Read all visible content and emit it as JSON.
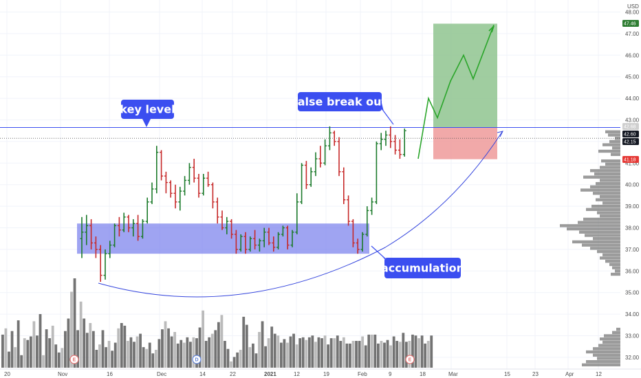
{
  "chart_data": {
    "type": "bar",
    "subtype": "ohlc",
    "currency_label": "USD",
    "y_axis": {
      "range": [
        31.6,
        48.4
      ],
      "ticks": [
        "48.00",
        "47.00",
        "46.00",
        "45.00",
        "44.00",
        "43.00",
        "42.00",
        "41.00",
        "40.00",
        "39.00",
        "38.00",
        "37.00",
        "36.00",
        "35.00",
        "34.00",
        "33.00",
        "32.00"
      ],
      "tick_values": [
        48,
        47,
        46,
        45,
        44,
        43,
        42,
        41,
        40,
        39,
        38,
        37,
        36,
        35,
        34,
        33,
        32
      ]
    },
    "x_axis": {
      "labels": [
        "20",
        "Nov",
        "16",
        "Dec",
        "14",
        "22",
        "2021",
        "12",
        "19",
        "Feb",
        "9",
        "18",
        "Mar",
        "15",
        "23",
        "Apr",
        "12"
      ]
    },
    "price_badges": [
      {
        "label": "47.46",
        "value": 47.46,
        "color": "#2e7d32"
      },
      {
        "label": "42.68",
        "value": 42.68,
        "color": "#cfcfcf"
      },
      {
        "label": "42.60",
        "value": 42.6,
        "color": "#131722"
      },
      {
        "label": "42.15",
        "value": 42.15,
        "color": "#131722"
      },
      {
        "label": "41.18",
        "value": 41.18,
        "color": "#e53935"
      }
    ],
    "key_level": 42.65,
    "dotted_level": 42.15,
    "accumulation_zone": [
      36.8,
      38.2
    ],
    "target_zone": [
      42.65,
      47.46
    ],
    "stop_zone": [
      41.18,
      42.65
    ],
    "projected_path": [
      41.2,
      44.0,
      43.1,
      44.8,
      46.0,
      44.9,
      47.4
    ],
    "bars": [
      [
        37.5,
        38.5,
        36.6,
        37.8
      ],
      [
        37.8,
        38.6,
        37.2,
        38.1
      ],
      [
        38.1,
        38.4,
        37.0,
        37.3
      ],
      [
        37.3,
        37.6,
        36.6,
        37.0
      ],
      [
        37.0,
        37.2,
        35.5,
        35.8
      ],
      [
        35.8,
        37.0,
        35.6,
        36.8
      ],
      [
        36.8,
        37.4,
        36.6,
        37.2
      ],
      [
        37.2,
        38.2,
        37.1,
        38.1
      ],
      [
        38.1,
        38.5,
        37.6,
        37.9
      ],
      [
        37.9,
        38.7,
        37.8,
        38.5
      ],
      [
        38.5,
        38.6,
        37.8,
        38.0
      ],
      [
        38.0,
        38.4,
        37.6,
        38.2
      ],
      [
        38.2,
        38.6,
        37.4,
        37.6
      ],
      [
        37.6,
        38.4,
        37.5,
        38.3
      ],
      [
        38.3,
        39.4,
        38.2,
        39.2
      ],
      [
        39.2,
        40.1,
        39.1,
        39.8
      ],
      [
        39.8,
        41.8,
        39.6,
        41.5
      ],
      [
        41.5,
        41.6,
        40.2,
        40.4
      ],
      [
        40.4,
        40.6,
        39.6,
        40.1
      ],
      [
        40.1,
        40.2,
        39.4,
        39.6
      ],
      [
        39.6,
        40.0,
        38.9,
        39.2
      ],
      [
        39.2,
        39.9,
        38.8,
        39.7
      ],
      [
        39.7,
        40.4,
        39.5,
        40.2
      ],
      [
        40.2,
        41.0,
        40.0,
        40.8
      ],
      [
        40.8,
        41.2,
        40.1,
        40.3
      ],
      [
        40.3,
        40.5,
        39.4,
        39.6
      ],
      [
        39.6,
        40.5,
        39.5,
        40.3
      ],
      [
        40.3,
        40.6,
        39.9,
        40.0
      ],
      [
        40.0,
        40.1,
        38.9,
        39.2
      ],
      [
        39.2,
        39.4,
        38.2,
        38.5
      ],
      [
        38.5,
        38.8,
        37.9,
        38.0
      ],
      [
        38.0,
        38.5,
        37.7,
        38.3
      ],
      [
        38.3,
        38.4,
        37.5,
        37.7
      ],
      [
        37.7,
        37.9,
        36.8,
        37.0
      ],
      [
        37.0,
        37.7,
        36.9,
        37.6
      ],
      [
        37.6,
        37.8,
        36.8,
        37.0
      ],
      [
        37.0,
        37.6,
        36.9,
        37.5
      ],
      [
        37.5,
        37.9,
        37.0,
        37.2
      ],
      [
        37.2,
        37.5,
        36.9,
        37.4
      ],
      [
        37.4,
        38.0,
        37.1,
        37.8
      ],
      [
        37.8,
        38.0,
        37.2,
        37.3
      ],
      [
        37.3,
        37.6,
        36.9,
        37.1
      ],
      [
        37.1,
        37.8,
        37.0,
        37.7
      ],
      [
        37.7,
        38.1,
        37.6,
        38.0
      ],
      [
        38.0,
        38.1,
        37.0,
        37.2
      ],
      [
        37.2,
        37.9,
        37.1,
        37.8
      ],
      [
        37.8,
        39.6,
        37.7,
        39.2
      ],
      [
        39.2,
        41.0,
        39.1,
        40.9
      ],
      [
        40.9,
        41.1,
        39.8,
        40.0
      ],
      [
        40.0,
        40.8,
        39.9,
        40.6
      ],
      [
        40.6,
        41.5,
        40.4,
        41.2
      ],
      [
        41.2,
        41.8,
        40.8,
        41.0
      ],
      [
        41.0,
        42.1,
        40.9,
        41.8
      ],
      [
        41.8,
        42.7,
        41.6,
        42.4
      ],
      [
        42.4,
        42.5,
        41.8,
        42.0
      ],
      [
        42.0,
        42.2,
        40.4,
        40.6
      ],
      [
        40.6,
        40.8,
        39.1,
        39.3
      ],
      [
        39.3,
        39.5,
        38.1,
        38.3
      ],
      [
        38.3,
        38.4,
        37.1,
        37.3
      ],
      [
        37.3,
        37.5,
        36.8,
        37.0
      ],
      [
        37.0,
        37.8,
        36.9,
        37.7
      ],
      [
        37.7,
        39.0,
        37.6,
        38.8
      ],
      [
        38.8,
        39.4,
        38.6,
        39.2
      ],
      [
        39.2,
        42.0,
        39.1,
        41.9
      ],
      [
        41.9,
        42.4,
        41.6,
        42.1
      ],
      [
        42.1,
        42.5,
        41.8,
        42.3
      ],
      [
        42.3,
        42.7,
        41.7,
        42.0
      ],
      [
        42.0,
        42.3,
        41.4,
        41.6
      ],
      [
        41.6,
        42.1,
        41.2,
        41.4
      ],
      [
        41.4,
        42.6,
        41.3,
        42.5
      ]
    ],
    "bar_colors": "green when close >= open, red when close < open",
    "volume": [
      0.37,
      0.44,
      0.18,
      0.41,
      0.23,
      0.53,
      0.14,
      0.33,
      0.31,
      0.35,
      0.52,
      0.36,
      0.6,
      0.14,
      0.43,
      0.33,
      0.47,
      0.26,
      0.17,
      0.22,
      0.41,
      0.55,
      0.85,
      1.0,
      0.42,
      0.74,
      0.55,
      0.39,
      0.5,
      0.41,
      0.2,
      0.26,
      0.42,
      0.23,
      0.3,
      0.19,
      0.28,
      0.44,
      0.5,
      0.47,
      0.3,
      0.34,
      0.29,
      0.35,
      0.38,
      0.23,
      0.21,
      0.28,
      0.16,
      0.2,
      0.32,
      0.43,
      0.52,
      0.44,
      0.35,
      0.4,
      0.27,
      0.31,
      0.28,
      0.34,
      0.29,
      0.34,
      0.33,
      0.45,
      0.64,
      0.3,
      0.34,
      0.38,
      0.42,
      0.51,
      0.59,
      0.3,
      0.21,
      0.07,
      0.12,
      0.17,
      0.2,
      0.57,
      0.48,
      0.23,
      0.27,
      0.16,
      0.4,
      0.52,
      0.24,
      0.33,
      0.46,
      0.38,
      0.36,
      0.28,
      0.32,
      0.28,
      0.35,
      0.38,
      0.26,
      0.33,
      0.34,
      0.31,
      0.34,
      0.36,
      0.29,
      0.34,
      0.33,
      0.36,
      0.26,
      0.33,
      0.33,
      0.36,
      0.3,
      0.34,
      0.27,
      0.27,
      0.3,
      0.3,
      0.3,
      0.35,
      0.25,
      0.37,
      0.37,
      0.37,
      0.27,
      0.3,
      0.28,
      0.31,
      0.25,
      0.35,
      0.3,
      0.29,
      0.39,
      0.29,
      0.3,
      0.37,
      0.36,
      0.33,
      0.36,
      0.27,
      0.3,
      0.36
    ],
    "volume_profile": [
      {
        "price": 42.45,
        "w": 22
      },
      {
        "price": 42.3,
        "w": 18
      },
      {
        "price": 42.15,
        "w": 8
      },
      {
        "price": 42.0,
        "w": 16
      },
      {
        "price": 41.85,
        "w": 26
      },
      {
        "price": 41.7,
        "w": 12
      },
      {
        "price": 41.55,
        "w": 32
      },
      {
        "price": 41.4,
        "w": 14
      },
      {
        "price": 41.1,
        "w": 28
      },
      {
        "price": 40.95,
        "w": 22
      },
      {
        "price": 40.8,
        "w": 30
      },
      {
        "price": 40.65,
        "w": 44
      },
      {
        "price": 40.5,
        "w": 38
      },
      {
        "price": 40.35,
        "w": 54
      },
      {
        "price": 40.2,
        "w": 30
      },
      {
        "price": 40.05,
        "w": 36
      },
      {
        "price": 39.9,
        "w": 44
      },
      {
        "price": 39.75,
        "w": 58
      },
      {
        "price": 39.6,
        "w": 40
      },
      {
        "price": 39.45,
        "w": 30
      },
      {
        "price": 39.3,
        "w": 36
      },
      {
        "price": 39.15,
        "w": 26
      },
      {
        "price": 39.0,
        "w": 42
      },
      {
        "price": 38.85,
        "w": 50
      },
      {
        "price": 38.7,
        "w": 34
      },
      {
        "price": 38.55,
        "w": 30
      },
      {
        "price": 38.4,
        "w": 54
      },
      {
        "price": 38.25,
        "w": 62
      },
      {
        "price": 38.1,
        "w": 88
      },
      {
        "price": 37.95,
        "w": 78
      },
      {
        "price": 37.8,
        "w": 60
      },
      {
        "price": 37.65,
        "w": 52
      },
      {
        "price": 37.5,
        "w": 40
      },
      {
        "price": 37.35,
        "w": 70
      },
      {
        "price": 37.2,
        "w": 56
      },
      {
        "price": 37.05,
        "w": 44
      },
      {
        "price": 36.9,
        "w": 34
      },
      {
        "price": 36.75,
        "w": 26
      },
      {
        "price": 36.6,
        "w": 30
      },
      {
        "price": 36.45,
        "w": 22
      },
      {
        "price": 36.3,
        "w": 16
      },
      {
        "price": 36.15,
        "w": 12
      },
      {
        "price": 36.0,
        "w": 8
      },
      {
        "price": 35.85,
        "w": 14
      },
      {
        "price": 33.3,
        "w": 6
      },
      {
        "price": 33.15,
        "w": 12
      },
      {
        "price": 33.0,
        "w": 24
      },
      {
        "price": 32.85,
        "w": 30
      },
      {
        "price": 32.7,
        "w": 26
      },
      {
        "price": 32.55,
        "w": 32
      },
      {
        "price": 32.4,
        "w": 40
      },
      {
        "price": 32.25,
        "w": 50
      },
      {
        "price": 32.1,
        "w": 40
      },
      {
        "price": 31.95,
        "w": 34
      },
      {
        "price": 31.8,
        "w": 50
      },
      {
        "price": 31.65,
        "w": 56
      }
    ],
    "annotations": [
      {
        "text": "key level"
      },
      {
        "text": "false break out"
      },
      {
        "text": "accumulation"
      }
    ],
    "event_markers": [
      {
        "label": "E",
        "color": "#e57373"
      },
      {
        "label": "D",
        "color": "#5b7fd6"
      },
      {
        "label": "E",
        "color": "#e57373"
      }
    ],
    "colors": {
      "up": "#1b7a2a",
      "down": "#c62828",
      "key_level_line": "#3b4ef0",
      "annotation_bg": "#3b4ef0",
      "accumulation_fill": "#7f86ee",
      "target_fill": "#8fc48f",
      "stop_fill": "#ef9a9a",
      "projection": "#2aa52a",
      "volume_dark": "#5a5a5a",
      "volume_light": "#b4b4b4"
    }
  }
}
